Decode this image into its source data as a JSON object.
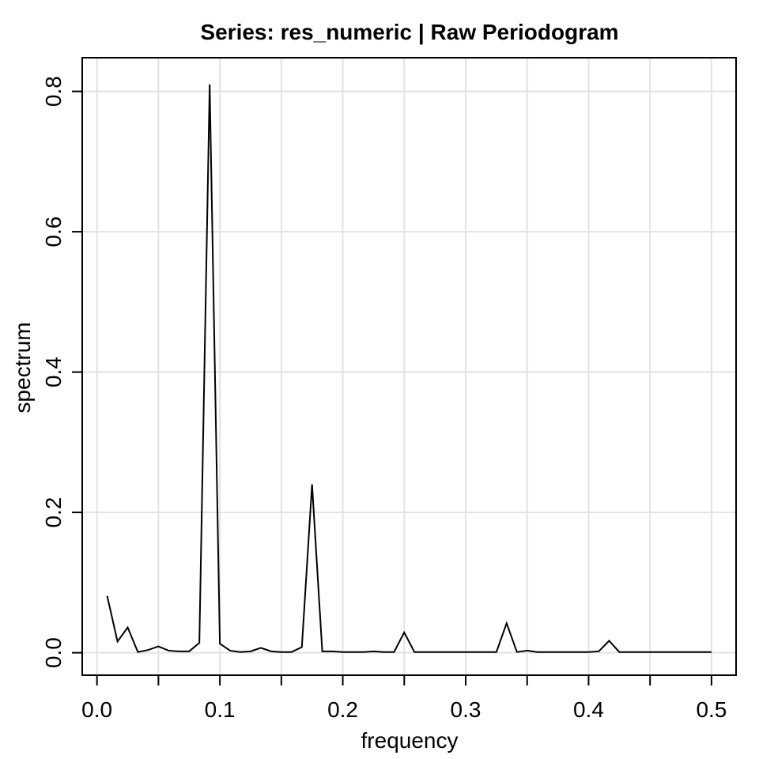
{
  "chart_data": {
    "type": "line",
    "title": "Series: res_numeric  |  Raw Periodogram",
    "xlabel": "frequency",
    "ylabel": "spectrum",
    "xlim": [
      -0.012,
      0.52
    ],
    "ylim": [
      -0.032,
      0.848
    ],
    "grid": true,
    "x_ticks": [
      0.0,
      0.1,
      0.2,
      0.3,
      0.4,
      0.5
    ],
    "x_tick_labels": [
      "0.0",
      "0.1",
      "0.2",
      "0.3",
      "0.4",
      "0.5"
    ],
    "x_minor_ticks": [
      0.05,
      0.15,
      0.25,
      0.35,
      0.45
    ],
    "y_ticks": [
      0.0,
      0.2,
      0.4,
      0.6,
      0.8
    ],
    "y_tick_labels": [
      "0.0",
      "0.2",
      "0.4",
      "0.6",
      "0.8"
    ],
    "series": [
      {
        "color": "#000000",
        "x": [
          0.0083,
          0.0167,
          0.025,
          0.0333,
          0.0417,
          0.05,
          0.0583,
          0.0667,
          0.075,
          0.0833,
          0.0917,
          0.1,
          0.1083,
          0.1167,
          0.125,
          0.1333,
          0.1417,
          0.15,
          0.1583,
          0.1667,
          0.175,
          0.1833,
          0.1917,
          0.2,
          0.2083,
          0.2167,
          0.225,
          0.2333,
          0.2417,
          0.25,
          0.2583,
          0.2667,
          0.275,
          0.2833,
          0.2917,
          0.3,
          0.3083,
          0.3167,
          0.325,
          0.3333,
          0.3417,
          0.35,
          0.3583,
          0.3667,
          0.375,
          0.3833,
          0.3917,
          0.4,
          0.4083,
          0.4167,
          0.425,
          0.4333,
          0.4417,
          0.45,
          0.4583,
          0.4667,
          0.475,
          0.4833,
          0.4917,
          0.5
        ],
        "y": [
          0.081,
          0.016,
          0.036,
          0.001,
          0.004,
          0.009,
          0.003,
          0.002,
          0.002,
          0.014,
          0.81,
          0.013,
          0.003,
          0.001,
          0.002,
          0.007,
          0.002,
          0.001,
          0.001,
          0.008,
          0.24,
          0.002,
          0.002,
          0.001,
          0.001,
          0.001,
          0.002,
          0.001,
          0.001,
          0.029,
          0.001,
          0.001,
          0.001,
          0.001,
          0.001,
          0.001,
          0.001,
          0.001,
          0.001,
          0.042,
          0.001,
          0.003,
          0.001,
          0.001,
          0.001,
          0.001,
          0.001,
          0.001,
          0.002,
          0.017,
          0.001,
          0.001,
          0.001,
          0.001,
          0.001,
          0.001,
          0.001,
          0.001,
          0.001,
          0.001
        ]
      }
    ]
  }
}
